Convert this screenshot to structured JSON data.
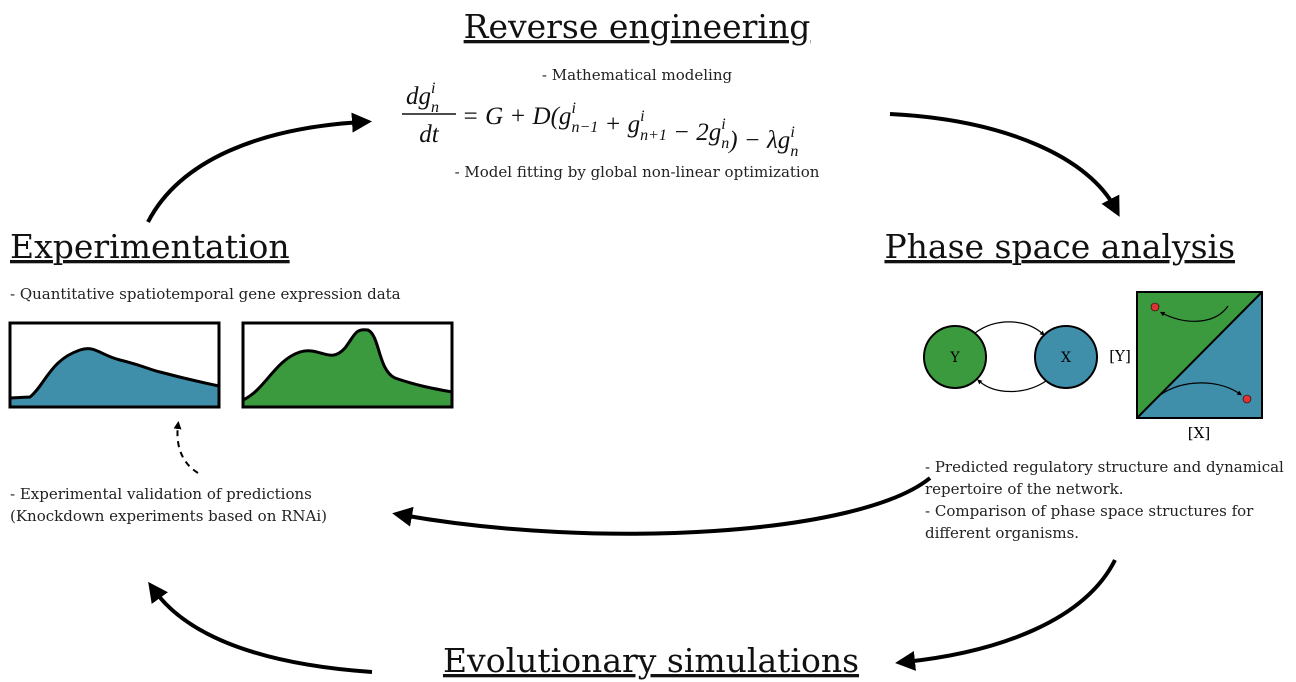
{
  "reverse_engineering": {
    "title": "Reverse engineering",
    "notes": [
      "- Mathematical modeling",
      "- Model fitting by global non-linear optimization"
    ]
  },
  "equation": {
    "numerator": {
      "t": "dg",
      "sup": "i",
      "sub": "n"
    },
    "denominator": "dt",
    "terms": [
      {
        "t": "= G + D(g",
        "sup": "i",
        "sub": "n−1"
      },
      {
        "t": " + g",
        "sup": "i",
        "sub": "n+1"
      },
      {
        "t": " − 2g",
        "sup": "i",
        "sub": "n"
      },
      {
        "t": ") − λg",
        "sup": "i",
        "sub": "n"
      }
    ]
  },
  "experimentation": {
    "title": "Experimentation",
    "notes": [
      "- Quantitative spatiotemporal gene expression data"
    ]
  },
  "validation": [
    "- Experimental validation of predictions",
    "(Knockdown experiments based on RNAi)"
  ],
  "phase_space": {
    "title": "Phase space analysis",
    "nodes": [
      "Y",
      "X"
    ],
    "axis_x": "[X]",
    "axis_y": "[Y]",
    "notes": [
      "- Predicted regulatory structure and dynamical",
      "repertoire of the network.",
      "- Comparison of phase space structures for",
      "different organisms."
    ]
  },
  "evolutionary": {
    "title": "Evolutionary simulations"
  }
}
